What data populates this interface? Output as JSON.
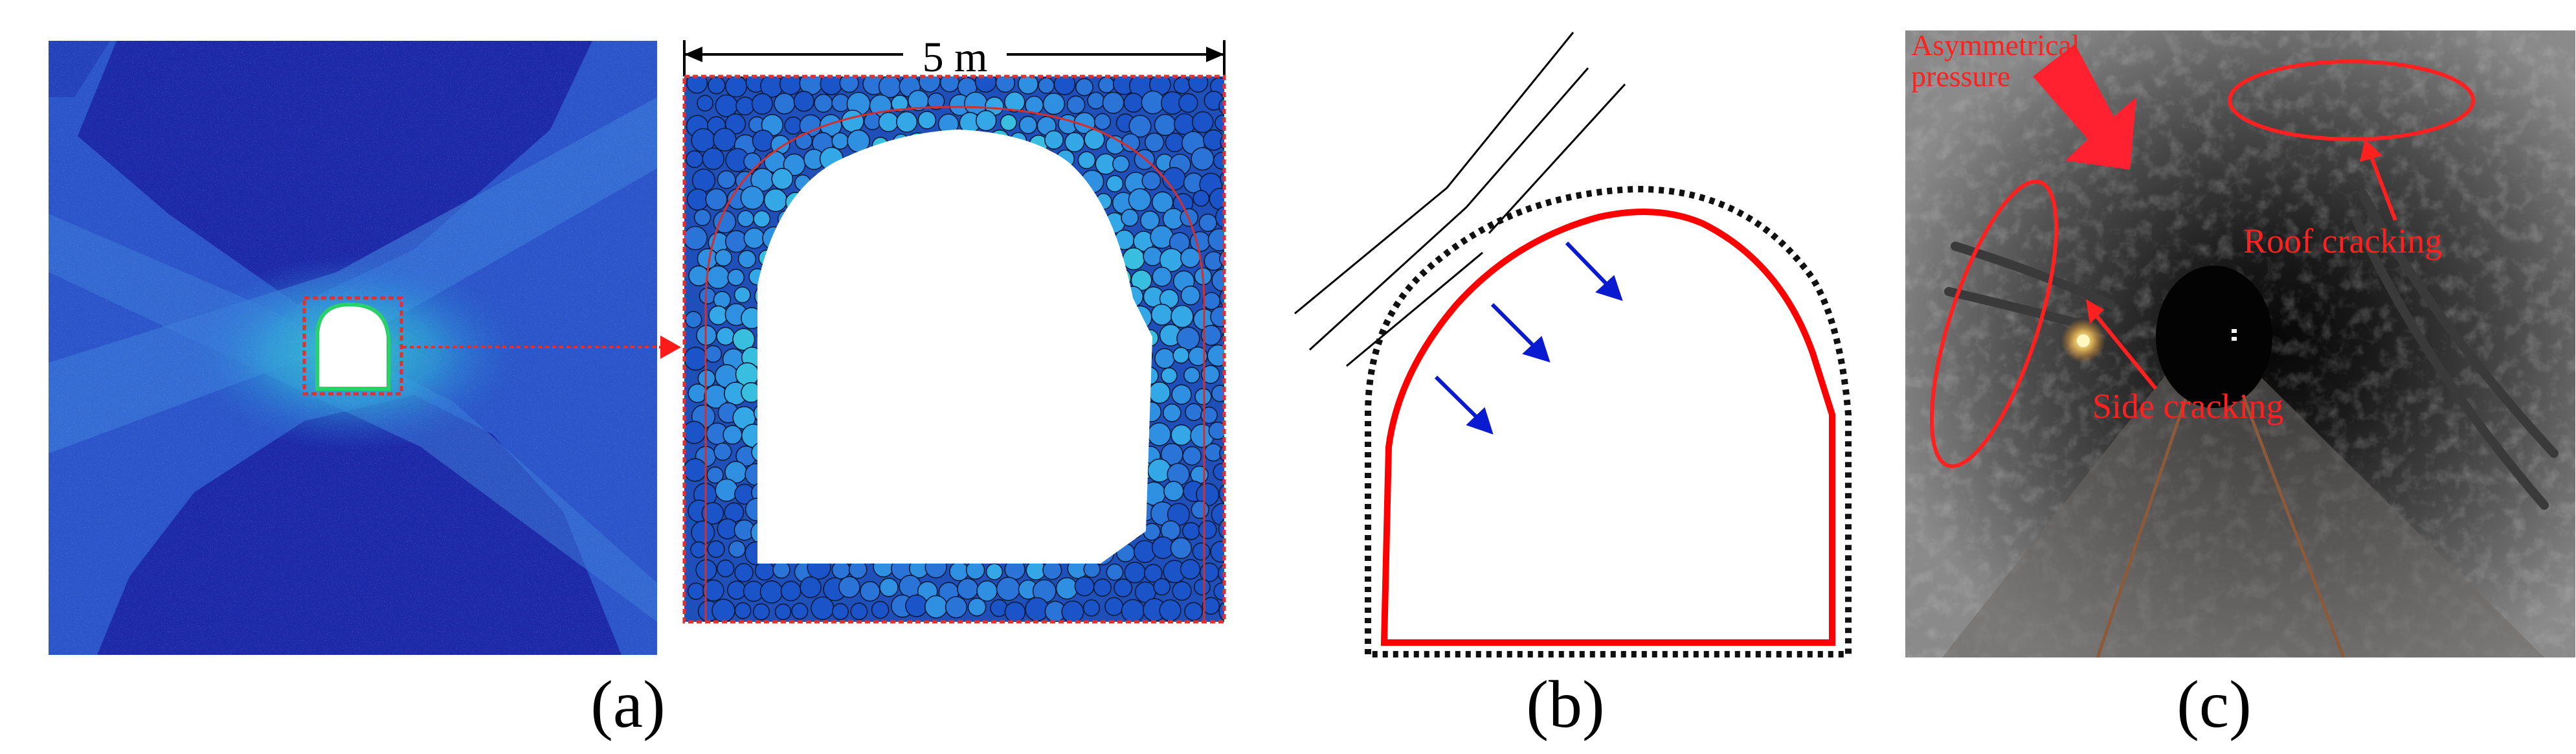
{
  "figure": {
    "panel_a": {
      "label": "(a)",
      "scale_label": "5 m",
      "colors": {
        "rock_dark": "#1a2a9a",
        "rock_mid": "#2a4fd0",
        "rock_light": "#4aa0e8",
        "damage_green": "#3cdc6a",
        "dashed_red": "#e03030"
      }
    },
    "panel_b": {
      "label": "(b)",
      "colors": {
        "tunnel_outline": "#ff0000",
        "arrow": "#0a1ad0",
        "dotted_boundary": "#000000"
      }
    },
    "panel_c": {
      "label": "(c)",
      "annotations": {
        "asymmetrical_pressure": "Asymmetrical pressure",
        "roof_cracking": "Roof cracking",
        "side_cracking": "Side cracking"
      },
      "colors": {
        "annotation": "#ff2020"
      }
    }
  }
}
